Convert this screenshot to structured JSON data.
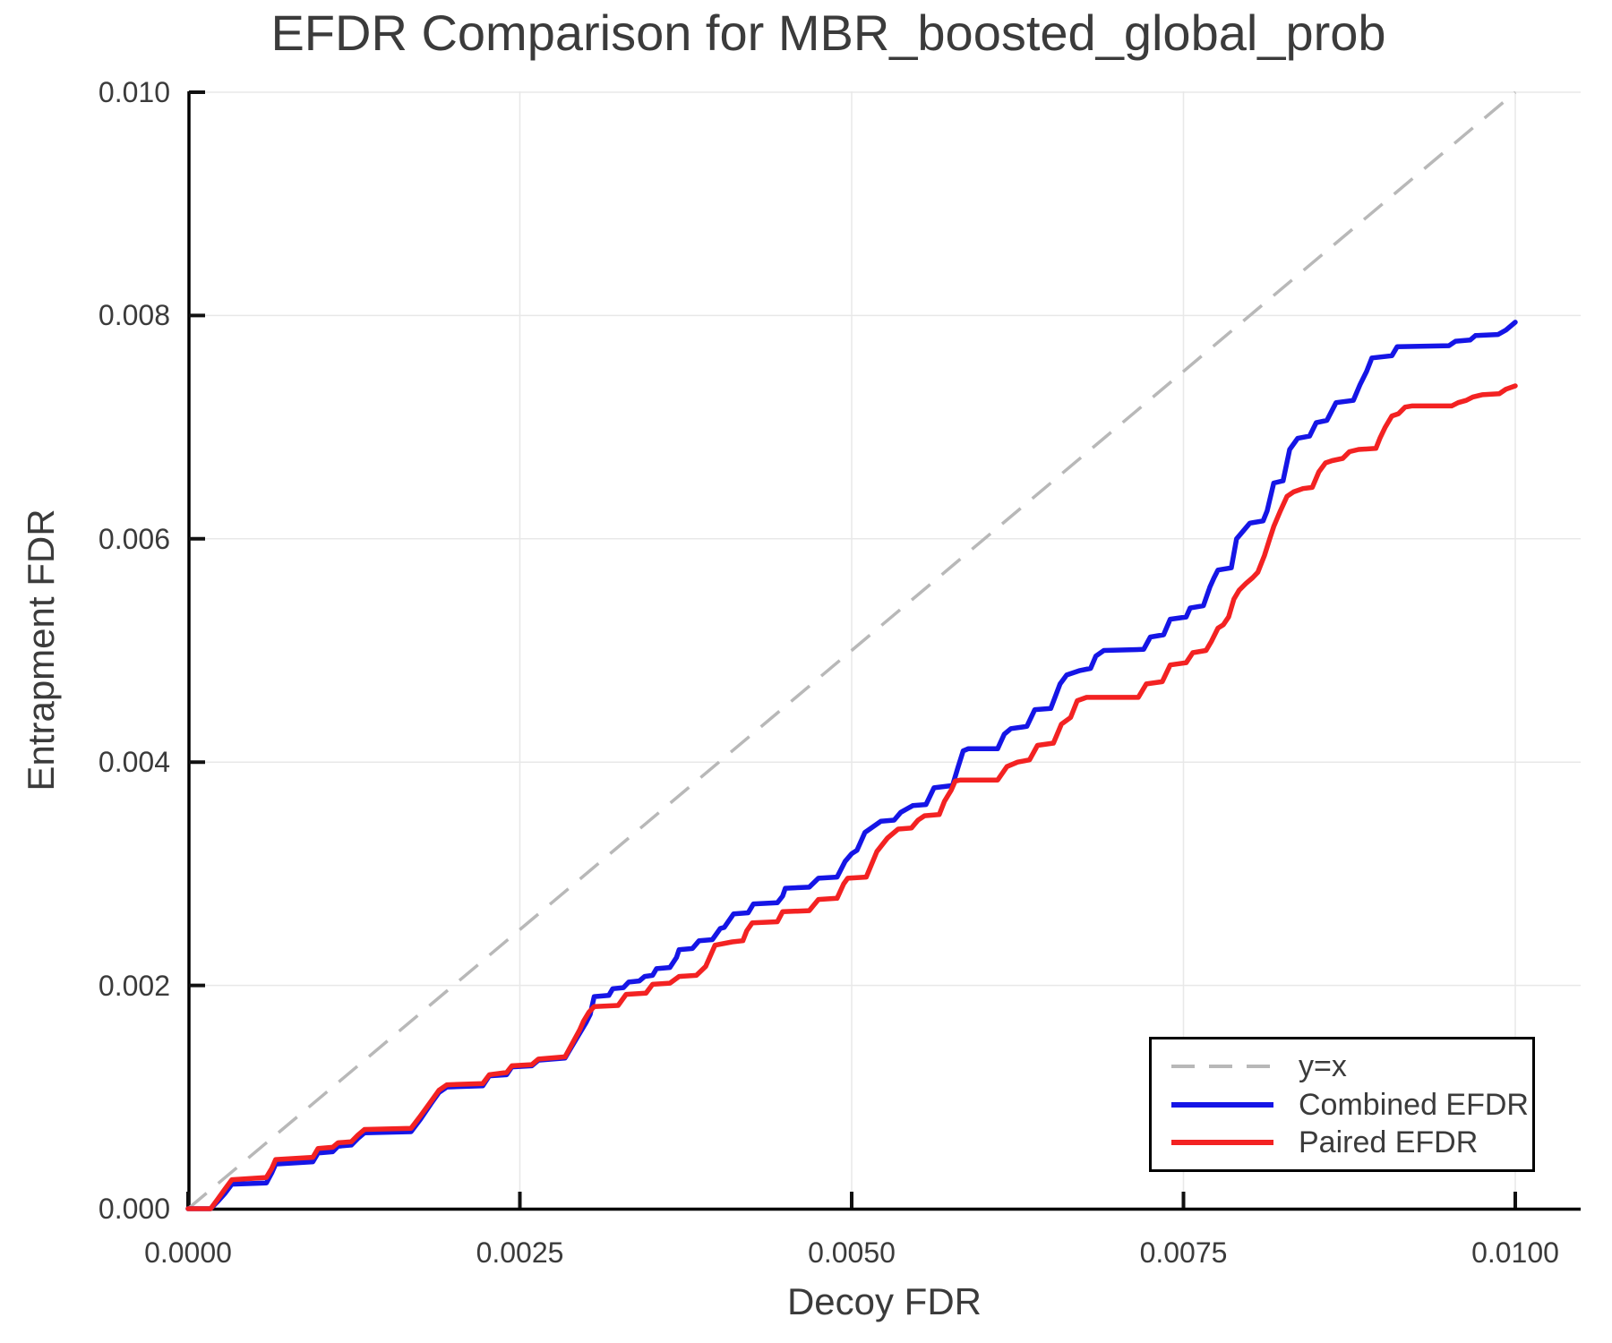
{
  "chart_data": {
    "type": "line",
    "title": "EFDR Comparison for MBR_boosted_global_prob",
    "xlabel": "Decoy FDR",
    "ylabel": "Entrapment FDR",
    "xlim": [
      0.0,
      0.0105
    ],
    "ylim": [
      0.0,
      0.01
    ],
    "grid": true,
    "xticks": {
      "values": [
        0.0,
        0.0025,
        0.005,
        0.0075,
        0.01
      ],
      "labels": [
        "0.0000",
        "0.0025",
        "0.0050",
        "0.0075",
        "0.0100"
      ]
    },
    "yticks": {
      "values": [
        0.0,
        0.002,
        0.004,
        0.006,
        0.008,
        0.01
      ],
      "labels": [
        "0.000",
        "0.002",
        "0.004",
        "0.006",
        "0.008",
        "0.010"
      ]
    },
    "legend": {
      "position": "lower right",
      "items": [
        {
          "label": "y=x",
          "color": "#b8b8b8",
          "style": "dashed"
        },
        {
          "label": "Combined EFDR",
          "color": "#1515e6",
          "style": "solid"
        },
        {
          "label": "Paired EFDR",
          "color": "#f32222",
          "style": "solid"
        }
      ]
    },
    "colors": {
      "grid": "#e8e8e8",
      "spine": "#000000",
      "tick": "#111111",
      "text": "#3b3b3b",
      "identity_line": "#b8b8b8",
      "combined_line": "#1515e6",
      "paired_line": "#f32222"
    },
    "series": [
      {
        "name": "y=x",
        "style": "dashed",
        "color": "#b8b8b8",
        "points": [
          [
            0.0,
            0.0
          ],
          [
            0.01,
            0.01
          ]
        ]
      },
      {
        "name": "Combined EFDR",
        "style": "solid",
        "color": "#1515e6",
        "points": [
          [
            0.0,
            0.0
          ],
          [
            0.00017,
            0.0
          ],
          [
            0.00022,
            6e-05
          ],
          [
            0.00028,
            0.00014
          ],
          [
            0.00033,
            0.00022
          ],
          [
            0.00059,
            0.00023
          ],
          [
            0.00063,
            0.00032
          ],
          [
            0.00066,
            0.0004
          ],
          [
            0.00094,
            0.00042
          ],
          [
            0.00098,
            0.0005
          ],
          [
            0.00109,
            0.00051
          ],
          [
            0.00113,
            0.00056
          ],
          [
            0.00123,
            0.00057
          ],
          [
            0.00128,
            0.00063
          ],
          [
            0.00133,
            0.00068
          ],
          [
            0.00168,
            0.00069
          ],
          [
            0.00175,
            0.0008
          ],
          [
            0.00183,
            0.00094
          ],
          [
            0.00189,
            0.00104
          ],
          [
            0.00195,
            0.00109
          ],
          [
            0.00222,
            0.0011
          ],
          [
            0.00227,
            0.00119
          ],
          [
            0.0024,
            0.0012
          ],
          [
            0.00244,
            0.00127
          ],
          [
            0.00259,
            0.00128
          ],
          [
            0.00264,
            0.00133
          ],
          [
            0.00284,
            0.00135
          ],
          [
            0.00294,
            0.00155
          ],
          [
            0.003,
            0.00167
          ],
          [
            0.00303,
            0.00174
          ],
          [
            0.00306,
            0.0019
          ],
          [
            0.00317,
            0.00191
          ],
          [
            0.0032,
            0.00197
          ],
          [
            0.00328,
            0.00198
          ],
          [
            0.00332,
            0.00203
          ],
          [
            0.0034,
            0.00204
          ],
          [
            0.00344,
            0.00208
          ],
          [
            0.0035,
            0.00209
          ],
          [
            0.00353,
            0.00215
          ],
          [
            0.00363,
            0.00216
          ],
          [
            0.00368,
            0.00225
          ],
          [
            0.0037,
            0.00232
          ],
          [
            0.0038,
            0.00233
          ],
          [
            0.00385,
            0.0024
          ],
          [
            0.00395,
            0.00241
          ],
          [
            0.00401,
            0.00251
          ],
          [
            0.00404,
            0.00252
          ],
          [
            0.00411,
            0.00264
          ],
          [
            0.00422,
            0.00265
          ],
          [
            0.00426,
            0.00273
          ],
          [
            0.00444,
            0.00274
          ],
          [
            0.00448,
            0.0028
          ],
          [
            0.0045,
            0.00287
          ],
          [
            0.00468,
            0.00288
          ],
          [
            0.00475,
            0.00296
          ],
          [
            0.00489,
            0.00297
          ],
          [
            0.00495,
            0.00311
          ],
          [
            0.005,
            0.00318
          ],
          [
            0.00504,
            0.00321
          ],
          [
            0.0051,
            0.00337
          ],
          [
            0.00522,
            0.00347
          ],
          [
            0.00532,
            0.00348
          ],
          [
            0.00537,
            0.00355
          ],
          [
            0.00546,
            0.00361
          ],
          [
            0.00556,
            0.00362
          ],
          [
            0.00562,
            0.00377
          ],
          [
            0.00576,
            0.00379
          ],
          [
            0.0058,
            0.00395
          ],
          [
            0.00584,
            0.0041
          ],
          [
            0.00588,
            0.00412
          ],
          [
            0.0061,
            0.00412
          ],
          [
            0.00615,
            0.00425
          ],
          [
            0.0062,
            0.0043
          ],
          [
            0.00632,
            0.00432
          ],
          [
            0.00638,
            0.00447
          ],
          [
            0.0065,
            0.00448
          ],
          [
            0.00657,
            0.0047
          ],
          [
            0.00662,
            0.00478
          ],
          [
            0.00672,
            0.00482
          ],
          [
            0.0068,
            0.00484
          ],
          [
            0.00684,
            0.00495
          ],
          [
            0.0069,
            0.005
          ],
          [
            0.0072,
            0.00501
          ],
          [
            0.00725,
            0.00512
          ],
          [
            0.00735,
            0.00514
          ],
          [
            0.0074,
            0.00528
          ],
          [
            0.00752,
            0.0053
          ],
          [
            0.00755,
            0.00538
          ],
          [
            0.00765,
            0.0054
          ],
          [
            0.0077,
            0.00557
          ],
          [
            0.00773,
            0.00565
          ],
          [
            0.00776,
            0.00572
          ],
          [
            0.00786,
            0.00574
          ],
          [
            0.0079,
            0.006
          ],
          [
            0.008,
            0.00614
          ],
          [
            0.0081,
            0.00616
          ],
          [
            0.00813,
            0.00625
          ],
          [
            0.00818,
            0.0065
          ],
          [
            0.00825,
            0.00652
          ],
          [
            0.0083,
            0.0068
          ],
          [
            0.00836,
            0.0069
          ],
          [
            0.00845,
            0.00692
          ],
          [
            0.0085,
            0.00704
          ],
          [
            0.00858,
            0.00706
          ],
          [
            0.00865,
            0.00722
          ],
          [
            0.00878,
            0.00724
          ],
          [
            0.00883,
            0.00738
          ],
          [
            0.00888,
            0.0075
          ],
          [
            0.00892,
            0.00762
          ],
          [
            0.00907,
            0.00764
          ],
          [
            0.00911,
            0.00772
          ],
          [
            0.0095,
            0.00773
          ],
          [
            0.00955,
            0.00777
          ],
          [
            0.00966,
            0.00778
          ],
          [
            0.0097,
            0.00782
          ],
          [
            0.00987,
            0.00783
          ],
          [
            0.00993,
            0.00787
          ],
          [
            0.01,
            0.00794
          ]
        ]
      },
      {
        "name": "Paired EFDR",
        "style": "solid",
        "color": "#f32222",
        "points": [
          [
            0.0,
            0.0
          ],
          [
            0.00017,
            0.0
          ],
          [
            0.00022,
            8e-05
          ],
          [
            0.00028,
            0.00018
          ],
          [
            0.00033,
            0.00026
          ],
          [
            0.00059,
            0.00028
          ],
          [
            0.00063,
            0.00036
          ],
          [
            0.00066,
            0.00044
          ],
          [
            0.00094,
            0.00046
          ],
          [
            0.00098,
            0.00054
          ],
          [
            0.00109,
            0.00055
          ],
          [
            0.00113,
            0.00059
          ],
          [
            0.00123,
            0.0006
          ],
          [
            0.00128,
            0.00066
          ],
          [
            0.00133,
            0.00071
          ],
          [
            0.00168,
            0.00072
          ],
          [
            0.00175,
            0.00083
          ],
          [
            0.00183,
            0.00096
          ],
          [
            0.00189,
            0.00106
          ],
          [
            0.00195,
            0.00111
          ],
          [
            0.00222,
            0.00112
          ],
          [
            0.00227,
            0.0012
          ],
          [
            0.0024,
            0.00122
          ],
          [
            0.00244,
            0.00128
          ],
          [
            0.00259,
            0.00129
          ],
          [
            0.00264,
            0.00134
          ],
          [
            0.00284,
            0.00136
          ],
          [
            0.00295,
            0.0016
          ],
          [
            0.00298,
            0.00168
          ],
          [
            0.00302,
            0.00176
          ],
          [
            0.00306,
            0.00181
          ],
          [
            0.00324,
            0.00182
          ],
          [
            0.0033,
            0.00192
          ],
          [
            0.00345,
            0.00193
          ],
          [
            0.0035,
            0.00201
          ],
          [
            0.00363,
            0.00202
          ],
          [
            0.0037,
            0.00208
          ],
          [
            0.00383,
            0.00209
          ],
          [
            0.0039,
            0.00217
          ],
          [
            0.00397,
            0.00236
          ],
          [
            0.0041,
            0.00239
          ],
          [
            0.00418,
            0.0024
          ],
          [
            0.00421,
            0.00249
          ],
          [
            0.00425,
            0.00256
          ],
          [
            0.00444,
            0.00257
          ],
          [
            0.00448,
            0.00266
          ],
          [
            0.00468,
            0.00267
          ],
          [
            0.00475,
            0.00277
          ],
          [
            0.00489,
            0.00278
          ],
          [
            0.00494,
            0.00291
          ],
          [
            0.00497,
            0.00296
          ],
          [
            0.00511,
            0.00297
          ],
          [
            0.00519,
            0.0032
          ],
          [
            0.00527,
            0.00332
          ],
          [
            0.00535,
            0.0034
          ],
          [
            0.00545,
            0.00341
          ],
          [
            0.0055,
            0.00348
          ],
          [
            0.00555,
            0.00352
          ],
          [
            0.00566,
            0.00353
          ],
          [
            0.0057,
            0.00365
          ],
          [
            0.00575,
            0.00375
          ],
          [
            0.00578,
            0.00383
          ],
          [
            0.00582,
            0.00384
          ],
          [
            0.0061,
            0.00384
          ],
          [
            0.00617,
            0.00396
          ],
          [
            0.00625,
            0.004
          ],
          [
            0.00634,
            0.00402
          ],
          [
            0.0064,
            0.00415
          ],
          [
            0.00652,
            0.00417
          ],
          [
            0.00658,
            0.00434
          ],
          [
            0.00665,
            0.0044
          ],
          [
            0.0067,
            0.00455
          ],
          [
            0.00677,
            0.00458
          ],
          [
            0.00716,
            0.00458
          ],
          [
            0.00722,
            0.0047
          ],
          [
            0.00734,
            0.00472
          ],
          [
            0.0074,
            0.00487
          ],
          [
            0.00752,
            0.00489
          ],
          [
            0.00757,
            0.00498
          ],
          [
            0.00767,
            0.005
          ],
          [
            0.00771,
            0.00508
          ],
          [
            0.00776,
            0.0052
          ],
          [
            0.0078,
            0.00523
          ],
          [
            0.00784,
            0.0053
          ],
          [
            0.00788,
            0.00546
          ],
          [
            0.00792,
            0.00554
          ],
          [
            0.00797,
            0.0056
          ],
          [
            0.00802,
            0.00565
          ],
          [
            0.00806,
            0.0057
          ],
          [
            0.00811,
            0.00585
          ],
          [
            0.00815,
            0.006
          ],
          [
            0.00818,
            0.00611
          ],
          [
            0.00823,
            0.00625
          ],
          [
            0.00828,
            0.00638
          ],
          [
            0.00833,
            0.00642
          ],
          [
            0.0084,
            0.00645
          ],
          [
            0.00847,
            0.00646
          ],
          [
            0.00852,
            0.0066
          ],
          [
            0.00857,
            0.00668
          ],
          [
            0.00862,
            0.0067
          ],
          [
            0.0087,
            0.00672
          ],
          [
            0.00875,
            0.00678
          ],
          [
            0.00882,
            0.0068
          ],
          [
            0.00895,
            0.00681
          ],
          [
            0.00898,
            0.0069
          ],
          [
            0.00902,
            0.007
          ],
          [
            0.00907,
            0.0071
          ],
          [
            0.00912,
            0.00712
          ],
          [
            0.00917,
            0.00718
          ],
          [
            0.00922,
            0.00719
          ],
          [
            0.00952,
            0.00719
          ],
          [
            0.00957,
            0.00722
          ],
          [
            0.00963,
            0.00724
          ],
          [
            0.00968,
            0.00727
          ],
          [
            0.00975,
            0.00729
          ],
          [
            0.00988,
            0.0073
          ],
          [
            0.00993,
            0.00734
          ],
          [
            0.01,
            0.00737
          ]
        ]
      }
    ]
  }
}
